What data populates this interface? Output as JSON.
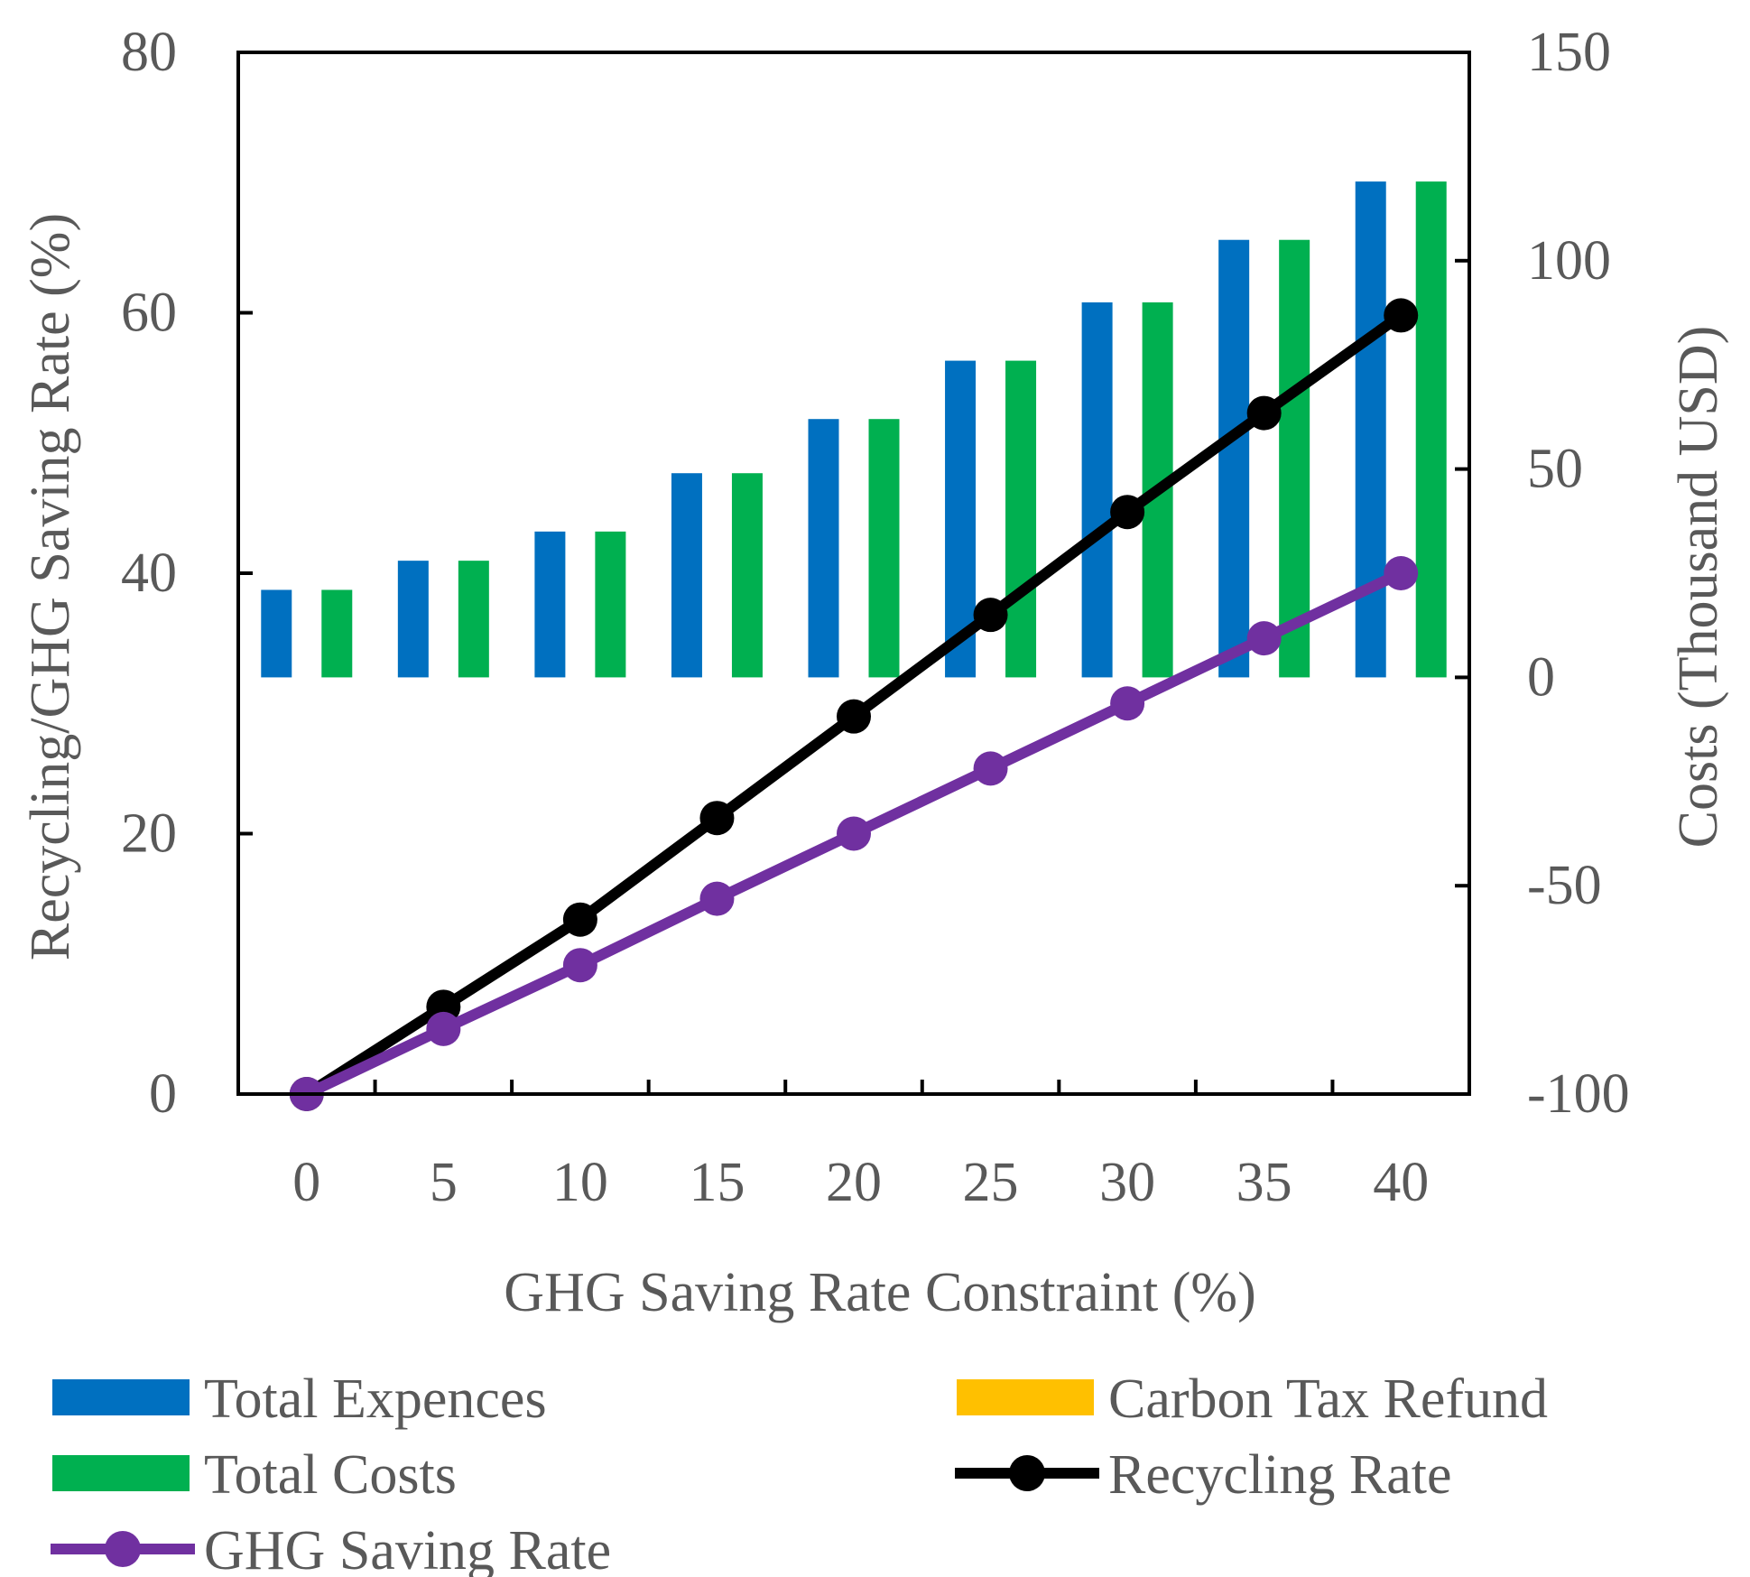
{
  "chart_data": {
    "type": "bar+line",
    "title": "",
    "xlabel": "GHG Saving Rate Constraint (%)",
    "ylabel": "Recycling/GHG Saving Rate (%)",
    "y2label": "Costs (Thousand USD)",
    "categories": [
      "0",
      "5",
      "10",
      "15",
      "20",
      "25",
      "30",
      "35",
      "40"
    ],
    "ylim": [
      0,
      80
    ],
    "yticks": [
      "0",
      "20",
      "40",
      "60",
      "80"
    ],
    "y2lim": [
      -100,
      150
    ],
    "y2ticks": [
      "-100",
      "-50",
      "0",
      "50",
      "100",
      "150"
    ],
    "grid": false,
    "legend_position": "bottom",
    "bar_series": [
      {
        "name": "Total Expences",
        "color": "#0070C0",
        "axis": "secondary",
        "values": [
          21,
          28,
          35,
          49,
          62,
          76,
          90,
          105,
          119
        ]
      },
      {
        "name": "Carbon Tax Refund",
        "color": "#FFC000",
        "axis": "secondary",
        "values": [
          0,
          0,
          0,
          0,
          0,
          0,
          0,
          0,
          0
        ]
      },
      {
        "name": "Total Costs",
        "color": "#00B050",
        "axis": "secondary",
        "values": [
          21,
          28,
          35,
          49,
          62,
          76,
          90,
          105,
          119
        ]
      }
    ],
    "line_series": [
      {
        "name": "Recycling Rate",
        "color": "#000000",
        "axis": "primary",
        "values": [
          0,
          6.7,
          13.4,
          21.2,
          29.0,
          36.8,
          44.7,
          52.3,
          59.8
        ]
      },
      {
        "name": "GHG Saving Rate",
        "color": "#7030A0",
        "axis": "primary",
        "values": [
          0,
          5.0,
          9.9,
          15.0,
          20.0,
          25.0,
          30.0,
          35.0,
          40.0
        ]
      }
    ],
    "legend": [
      {
        "name": "Total Expences",
        "kind": "bar",
        "color": "#0070C0"
      },
      {
        "name": "Carbon Tax Refund",
        "kind": "bar",
        "color": "#FFC000"
      },
      {
        "name": "Total Costs",
        "kind": "bar",
        "color": "#00B050"
      },
      {
        "name": "Recycling Rate",
        "kind": "line",
        "color": "#000000"
      },
      {
        "name": "GHG Saving Rate",
        "kind": "line",
        "color": "#7030A0"
      }
    ]
  }
}
